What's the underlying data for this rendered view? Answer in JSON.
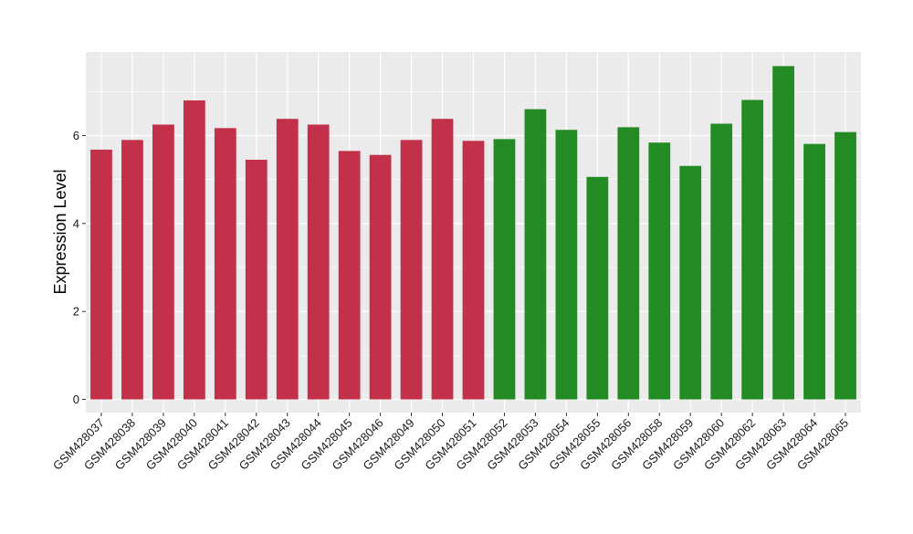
{
  "chart_data": {
    "type": "bar",
    "ylabel": "Expression Level",
    "xlabel": "",
    "ylim": [
      -0.3,
      7.9
    ],
    "yticks": [
      0,
      2,
      4,
      6
    ],
    "grid": true,
    "legend": "none",
    "colors": {
      "group_1": "#C3304A",
      "group_2": "#238B23",
      "panel": "#EBEBEB",
      "grid": "#FFFFFF"
    },
    "categories": [
      "GSM428037",
      "GSM428038",
      "GSM428039",
      "GSM428040",
      "GSM428041",
      "GSM428042",
      "GSM428043",
      "GSM428044",
      "GSM428045",
      "GSM428046",
      "GSM428049",
      "GSM428050",
      "GSM428051",
      "GSM428052",
      "GSM428053",
      "GSM428054",
      "GSM428055",
      "GSM428056",
      "GSM428058",
      "GSM428059",
      "GSM428060",
      "GSM428062",
      "GSM428063",
      "GSM428064",
      "GSM428065"
    ],
    "values": [
      5.68,
      5.9,
      6.25,
      6.8,
      6.17,
      5.45,
      6.38,
      6.25,
      5.65,
      5.56,
      5.9,
      6.38,
      5.88,
      5.92,
      6.6,
      6.13,
      5.06,
      6.19,
      5.84,
      5.31,
      6.27,
      6.81,
      7.58,
      5.81,
      6.08
    ],
    "groups": [
      1,
      1,
      1,
      1,
      1,
      1,
      1,
      1,
      1,
      1,
      1,
      1,
      1,
      2,
      2,
      2,
      2,
      2,
      2,
      2,
      2,
      2,
      2,
      2,
      2
    ]
  }
}
